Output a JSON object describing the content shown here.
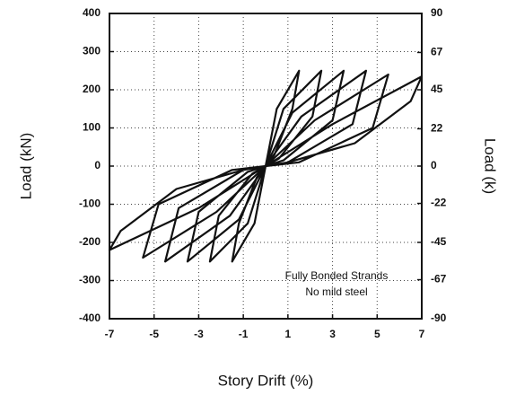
{
  "chart_data": {
    "type": "line",
    "xlabel": "Story Drift (%)",
    "ylabel": "Load (kN)",
    "y2label": "Load (k)",
    "annotations": [
      "Fully Bonded Strands",
      "No mild steel"
    ],
    "x": [
      0,
      0.5,
      1.5,
      1.2,
      0.4,
      0,
      -0.5,
      -1.5,
      -1.2,
      -0.4,
      0,
      0.8,
      2.5,
      2.1,
      0.6,
      0,
      -0.8,
      -2.5,
      -2.1,
      -0.6,
      0,
      1.2,
      3.5,
      3.0,
      0.8,
      0,
      -1.2,
      -3.5,
      -3.0,
      -0.8,
      0,
      1.6,
      4.5,
      3.9,
      1.0,
      0,
      -1.6,
      -4.5,
      -3.9,
      -1.0,
      0,
      2.2,
      5.5,
      4.8,
      1.5,
      0,
      -2.2,
      -5.5,
      -4.8,
      -1.5,
      0,
      3,
      7,
      6.5,
      4,
      1,
      0,
      -3,
      -7,
      -6.5,
      -4,
      -1,
      0
    ],
    "series": [
      {
        "color": "#111111",
        "values": [
          0,
          150,
          250,
          150,
          30,
          0,
          -150,
          -250,
          -150,
          -30,
          0,
          150,
          250,
          130,
          20,
          0,
          -150,
          -250,
          -130,
          -20,
          0,
          140,
          250,
          120,
          15,
          0,
          -140,
          -250,
          -120,
          -15,
          0,
          130,
          250,
          110,
          10,
          0,
          -130,
          -250,
          -110,
          -10,
          0,
          120,
          240,
          100,
          10,
          0,
          -120,
          -240,
          -100,
          -10,
          0,
          110,
          235,
          170,
          60,
          10,
          0,
          -110,
          -220,
          -170,
          -60,
          -10,
          0
        ]
      }
    ],
    "xlim": [
      -7,
      7
    ],
    "xticks": [
      -7,
      -5,
      -3,
      -1,
      1,
      3,
      5,
      7
    ],
    "ylim": [
      -400,
      400
    ],
    "yticks": [
      -400,
      -300,
      -200,
      -100,
      0,
      100,
      200,
      300,
      400
    ],
    "y2lim": [
      -90,
      90
    ],
    "y2ticks": [
      -90,
      -67,
      -45,
      -22,
      0,
      22,
      45,
      67,
      90
    ],
    "grid": true
  }
}
